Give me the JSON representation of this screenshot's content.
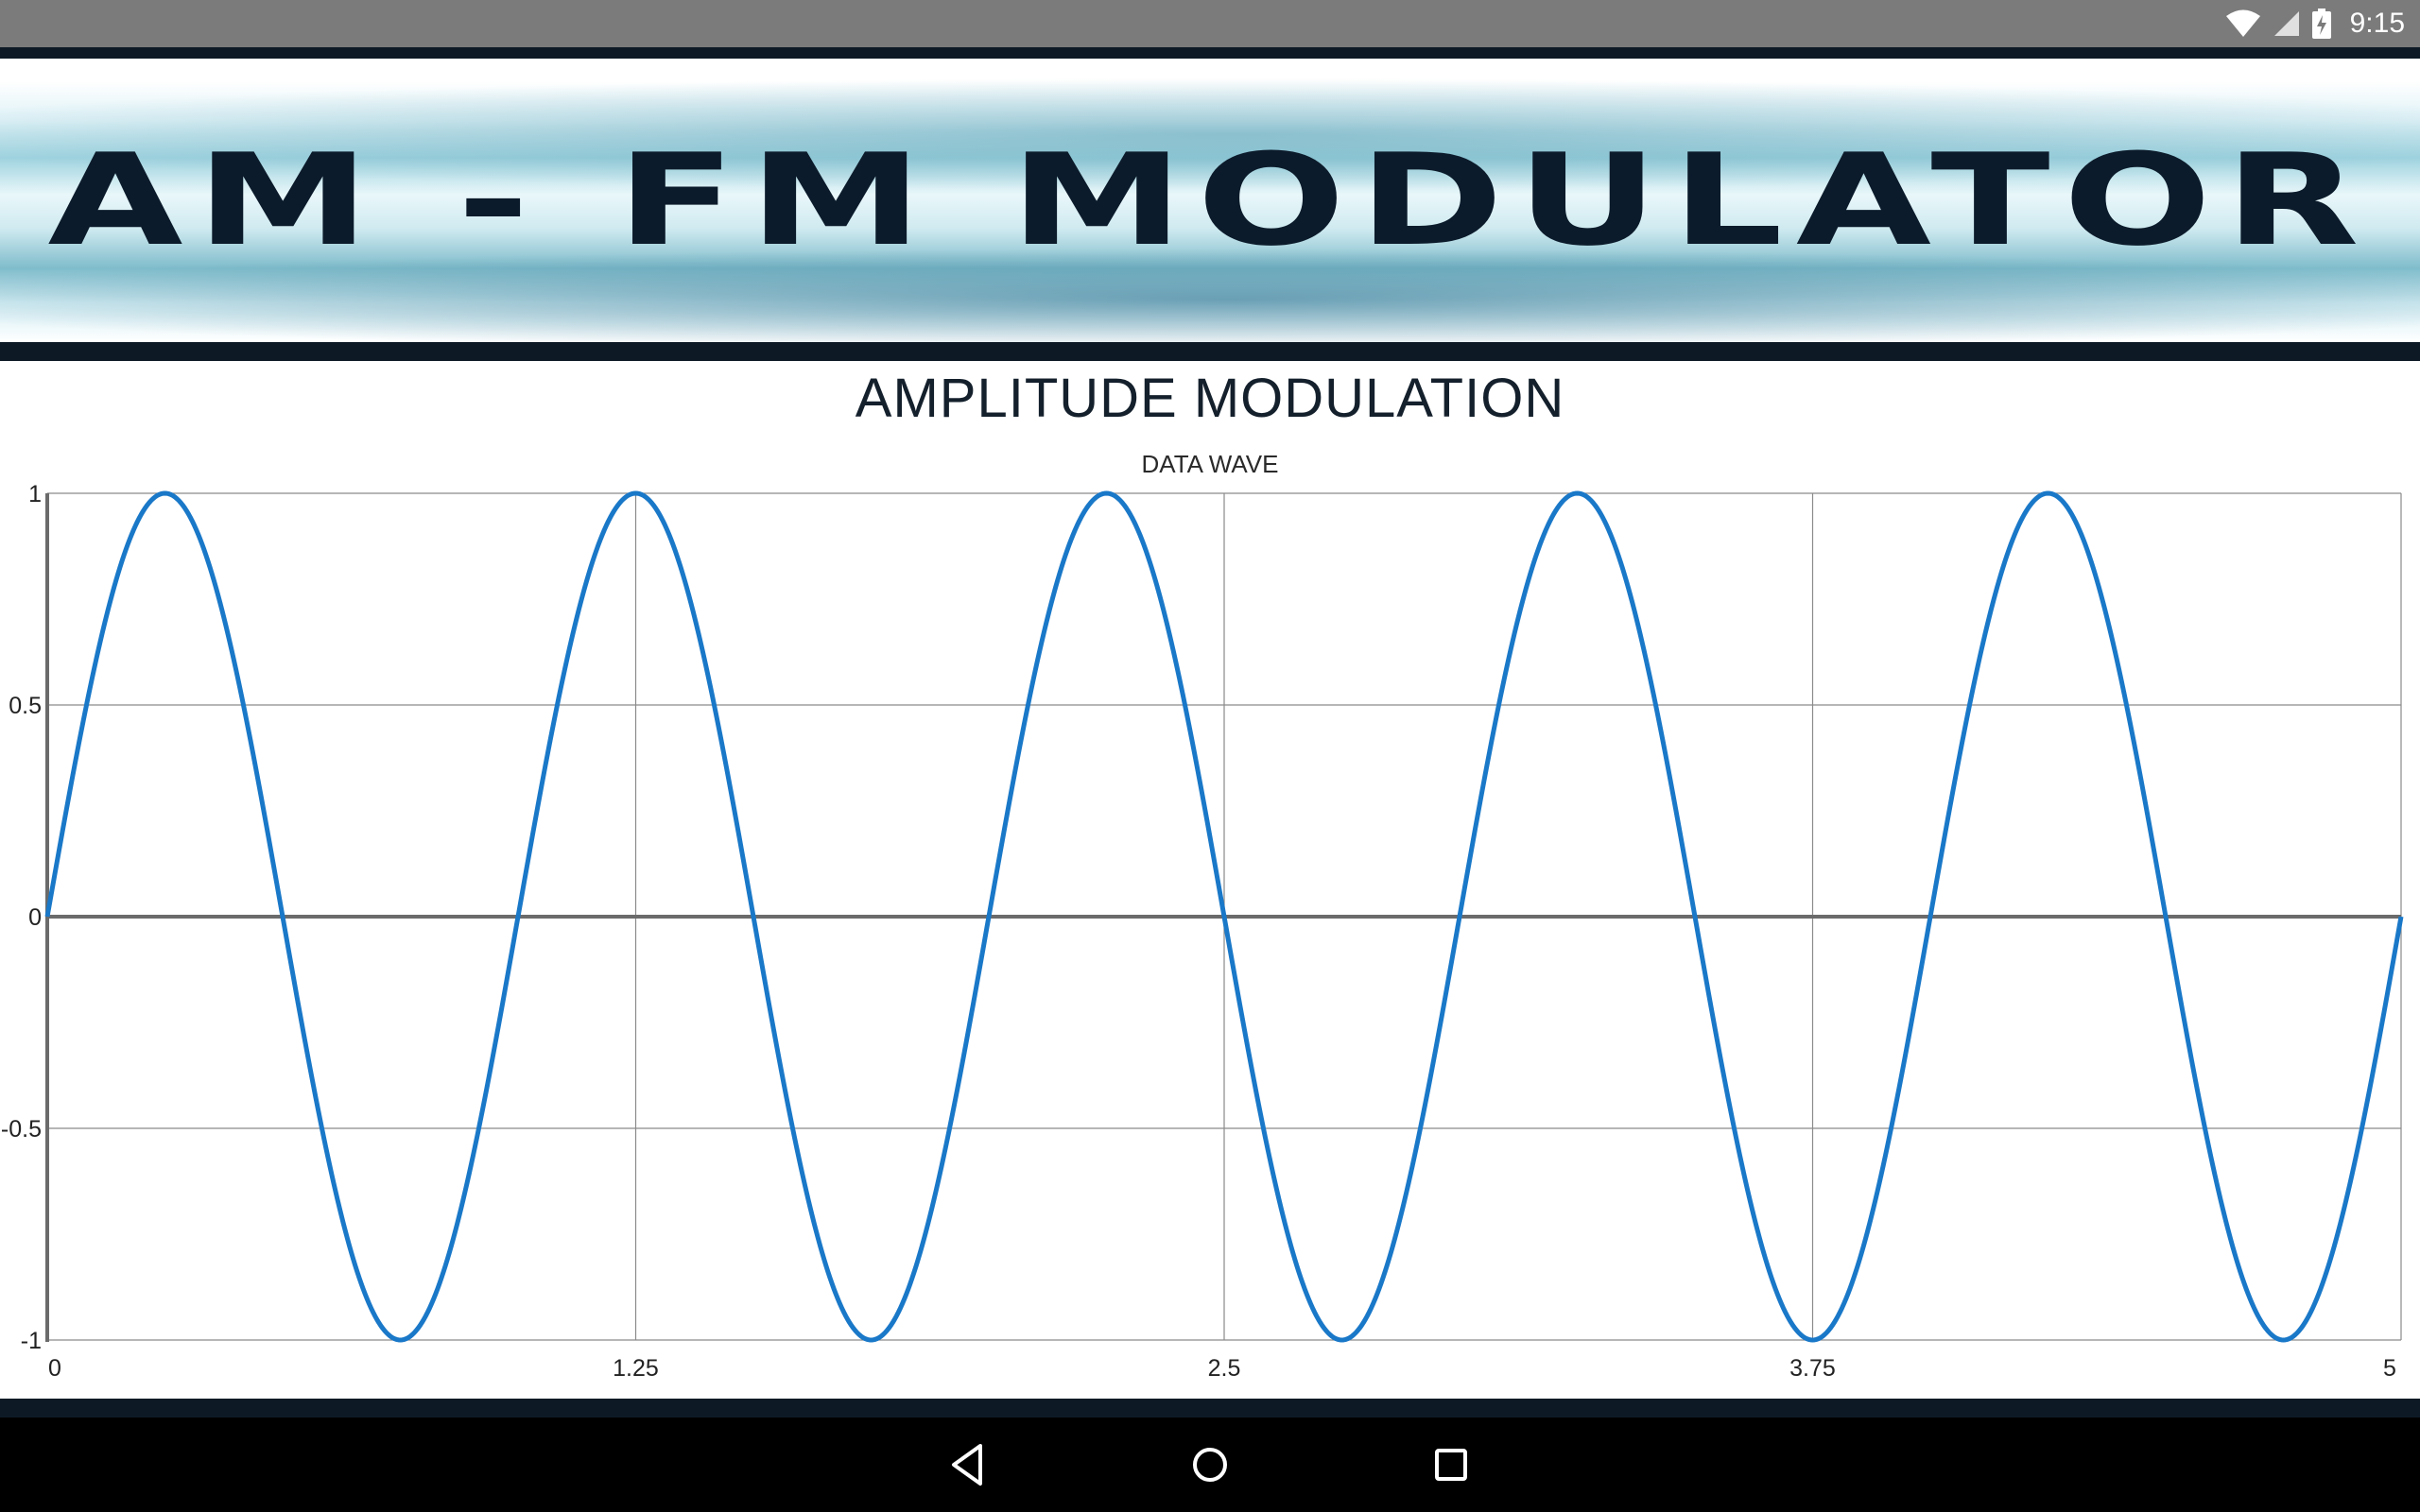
{
  "status_bar": {
    "time": "9:15",
    "icons": [
      "wifi-icon",
      "cell-signal-icon",
      "battery-charging-icon"
    ]
  },
  "banner": {
    "title": "AM - FM MODULATOR"
  },
  "screen": {
    "title": "AMPLITUDE MODULATION"
  },
  "chart_data": {
    "type": "line",
    "title": "DATA WAVE",
    "xlabel": "",
    "ylabel": "",
    "xlim": [
      0,
      5
    ],
    "ylim": [
      -1,
      1
    ],
    "x_ticks": [
      "0",
      "1.25",
      "2.5",
      "3.75",
      "5"
    ],
    "y_ticks": [
      "1",
      "0.5",
      "0",
      "-0.5",
      "-1"
    ],
    "grid": true,
    "legend": "none",
    "series": [
      {
        "function": "sin(2*pi*x)",
        "color": "#1a78c8",
        "x": [
          0,
          0.25,
          0.5,
          0.75,
          1,
          1.25,
          1.5,
          1.75,
          2,
          2.25,
          2.5,
          2.75,
          3,
          3.25,
          3.5,
          3.75,
          4,
          4.25,
          4.5,
          4.75,
          5
        ],
        "y": [
          0,
          1,
          0,
          -1,
          0,
          1,
          0,
          -1,
          0,
          1,
          0,
          -1,
          0,
          1,
          0,
          -1,
          0,
          1,
          0,
          -1,
          0
        ]
      }
    ]
  },
  "nav_bar": {
    "buttons": [
      "back-button",
      "home-button",
      "recents-button"
    ]
  }
}
